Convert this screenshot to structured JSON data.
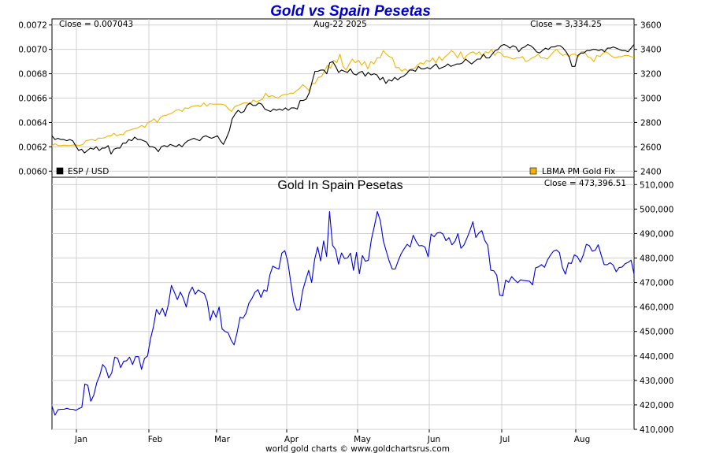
{
  "header": {
    "title": "Gold vs Spain Pesetas",
    "date": "Aug-22  2025",
    "close_left": "Close = 0.007043",
    "close_right": "Close = 3,334.25",
    "legend_left": "ESP / USD",
    "legend_right": "LBMA PM Gold Fix",
    "lower_title": "Gold In Spain Pesetas",
    "lower_close": "Close = 473,396.51",
    "footer": "world gold charts © www.goldchartsrus.com"
  },
  "colors": {
    "esp_usd": "#000000",
    "gold_fix": "#f0b400",
    "gold_in_esp": "#0000dd",
    "legend_left_box": "#000000",
    "legend_right_box": "#f0b400"
  },
  "chart_data": [
    {
      "type": "line",
      "title": "Gold vs Spain Pesetas",
      "x_labels": [
        "Jan",
        "Feb",
        "Mar",
        "Apr",
        "May",
        "Jun",
        "Jul",
        "Aug"
      ],
      "y_left_ticks": [
        "0.0060",
        "0.0062",
        "0.0064",
        "0.0066",
        "0.0068",
        "0.0070",
        "0.0072"
      ],
      "y_left_lim": [
        0.00595,
        0.00725
      ],
      "y_right_ticks": [
        "2400",
        "2600",
        "2800",
        "3000",
        "3200",
        "3400",
        "3600"
      ],
      "y_right_lim": [
        2350,
        3650
      ],
      "series": [
        {
          "name": "ESP / USD",
          "axis": "left",
          "values": [
            0.00629,
            0.00626,
            0.00627,
            0.00626,
            0.00626,
            0.00625,
            0.00626,
            0.00625,
            0.00621,
            0.00617,
            0.00618,
            0.00615,
            0.00617,
            0.00619,
            0.00618,
            0.0062,
            0.00617,
            0.00619,
            0.00619,
            0.00621,
            0.00614,
            0.00618,
            0.00619,
            0.00619,
            0.00623,
            0.00623,
            0.00626,
            0.00625,
            0.00628,
            0.00626,
            0.00626,
            0.00625,
            0.00624,
            0.0062,
            0.0062,
            0.00619,
            0.00616,
            0.0062,
            0.00621,
            0.0062,
            0.00622,
            0.00621,
            0.0062,
            0.00622,
            0.0062,
            0.00623,
            0.00625,
            0.00626,
            0.00627,
            0.00626,
            0.00625,
            0.00628,
            0.00629,
            0.00628,
            0.00627,
            0.00628,
            0.00629,
            0.00625,
            0.00622,
            0.00627,
            0.00633,
            0.00643,
            0.00647,
            0.0065,
            0.00648,
            0.00649,
            0.00654,
            0.00656,
            0.00654,
            0.00654,
            0.00656,
            0.00655,
            0.00651,
            0.0065,
            0.00649,
            0.00651,
            0.0065,
            0.00651,
            0.0065,
            0.00652,
            0.0065,
            0.00652,
            0.00652,
            0.00651,
            0.00658,
            0.00658,
            0.00659,
            0.00664,
            0.00673,
            0.00682,
            0.00682,
            0.00683,
            0.00683,
            0.0068,
            0.00689,
            0.0069,
            0.00686,
            0.00681,
            0.00683,
            0.00682,
            0.00681,
            0.00684,
            0.0068,
            0.00679,
            0.00681,
            0.00682,
            0.00678,
            0.00681,
            0.00679,
            0.0068,
            0.00679,
            0.00675,
            0.00677,
            0.00672,
            0.00675,
            0.00674,
            0.00677,
            0.00675,
            0.00677,
            0.00678,
            0.0068,
            0.00683,
            0.00683,
            0.00682,
            0.00686,
            0.00684,
            0.00684,
            0.00685,
            0.00684,
            0.00686,
            0.00688,
            0.00684,
            0.00685,
            0.00686,
            0.00688,
            0.00686,
            0.00687,
            0.00688,
            0.00688,
            0.00689,
            0.00692,
            0.0069,
            0.00688,
            0.0069,
            0.00692,
            0.00692,
            0.00696,
            0.00693,
            0.00693,
            0.00696,
            0.00699,
            0.007,
            0.00703,
            0.00704,
            0.00703,
            0.00701,
            0.00703,
            0.00702,
            0.00698,
            0.00701,
            0.00702,
            0.00704,
            0.00703,
            0.00701,
            0.00698,
            0.00697,
            0.00699,
            0.00701,
            0.007,
            0.00702,
            0.00702,
            0.00703,
            0.00703,
            0.00701,
            0.00698,
            0.00694,
            0.00686,
            0.00686,
            0.00695,
            0.00697,
            0.00697,
            0.00699,
            0.00699,
            0.007,
            0.007,
            0.00699,
            0.007,
            0.00698,
            0.00701,
            0.00701,
            0.00702,
            0.00701,
            0.007,
            0.00699,
            0.00699,
            0.00698,
            0.00701,
            0.00704
          ]
        },
        {
          "name": "LBMA PM Gold Fix",
          "axis": "right",
          "values": [
            2610,
            2625,
            2610,
            2610,
            2614,
            2610,
            2612,
            2616,
            2614,
            2612,
            2620,
            2650,
            2655,
            2660,
            2650,
            2672,
            2670,
            2675,
            2688,
            2690,
            2710,
            2690,
            2702,
            2700,
            2730,
            2735,
            2745,
            2750,
            2760,
            2775,
            2760,
            2800,
            2810,
            2830,
            2800,
            2840,
            2855,
            2860,
            2870,
            2880,
            2900,
            2905,
            2890,
            2920,
            2915,
            2930,
            2935,
            2940,
            2930,
            2960,
            2935,
            2955,
            2950,
            2950,
            2950,
            2950,
            2940,
            2910,
            2890,
            2930,
            2940,
            2950,
            2960,
            2960,
            2950,
            2985,
            2970,
            2980,
            2990,
            3040,
            3010,
            3020,
            3010,
            3000,
            3020,
            3030,
            3030,
            3040,
            3040,
            3060,
            3080,
            3110,
            3090,
            3060,
            3120,
            3120,
            3170,
            3175,
            3220,
            3270,
            3245,
            3310,
            3290,
            3360,
            3260,
            3230,
            3280,
            3320,
            3290,
            3310,
            3270,
            3300,
            3240,
            3300,
            3280,
            3330,
            3330,
            3390,
            3360,
            3340,
            3330,
            3250,
            3250,
            3220,
            3240,
            3220,
            3240,
            3240,
            3270,
            3290,
            3280,
            3310,
            3300,
            3330,
            3290,
            3340,
            3310,
            3340,
            3360,
            3390,
            3370,
            3330,
            3380,
            3320,
            3350,
            3370,
            3380,
            3360,
            3380,
            3340,
            3380,
            3370,
            3400,
            3350,
            3380,
            3370,
            3340,
            3340,
            3330,
            3320,
            3330,
            3330,
            3340,
            3300,
            3310,
            3330,
            3340,
            3360,
            3330,
            3330,
            3320,
            3350,
            3380,
            3400,
            3370,
            3350,
            3360,
            3340,
            3360,
            3360,
            3340,
            3380,
            3380,
            3340,
            3330,
            3300,
            3350,
            3340,
            3370,
            3380,
            3360,
            3340,
            3330,
            3340,
            3340,
            3350,
            3350,
            3340,
            3334
          ]
        }
      ]
    },
    {
      "type": "line",
      "title": "Gold In Spain Pesetas",
      "x_labels": [
        "Jan",
        "Feb",
        "Mar",
        "Apr",
        "May",
        "Jun",
        "Jul",
        "Aug"
      ],
      "y_right_ticks": [
        "410,000",
        "420,000",
        "430,000",
        "440,000",
        "450,000",
        "460,000",
        "470,000",
        "480,000",
        "490,000",
        "500,000",
        "510,000"
      ],
      "y_lim": [
        410000,
        513000
      ],
      "series": [
        {
          "name": "Gold In Spain Pesetas",
          "values": [
            419500,
            415800,
            418000,
            418200,
            418200,
            418600,
            418200,
            418200,
            417800,
            418500,
            419000,
            428500,
            428000,
            421500,
            424000,
            429000,
            432000,
            436500,
            435000,
            431000,
            433000,
            439500,
            439000,
            435200,
            437800,
            438000,
            439500,
            436500,
            439700,
            439700,
            434500,
            439000,
            440000,
            447000,
            452000,
            459000,
            457000,
            459500,
            456200,
            461000,
            468800,
            466000,
            463000,
            466100,
            463600,
            460000,
            465800,
            468100,
            465200,
            467000,
            466100,
            465500,
            462200,
            454500,
            458500,
            455800,
            460000,
            451000,
            450000,
            449500,
            446500,
            444500,
            449500,
            455800,
            455400,
            457400,
            461600,
            463500,
            466000,
            467100,
            463900,
            467000,
            466400,
            473200,
            476700,
            476000,
            475500,
            482000,
            483000,
            478500,
            470000,
            462000,
            458700,
            459000,
            466700,
            471000,
            475000,
            470000,
            479500,
            484500,
            478800,
            487000,
            480600,
            499000,
            485200,
            483500,
            477500,
            482100,
            479800,
            480000,
            482000,
            475000,
            482300,
            473600,
            481000,
            478700,
            479100,
            487600,
            493000,
            499000,
            495200,
            487000,
            482700,
            478700,
            475500,
            475500,
            478900,
            481800,
            483800,
            485600,
            484500,
            489300,
            486800,
            485000,
            485100,
            484400,
            480500,
            489800,
            488700,
            490200,
            490500,
            489800,
            487100,
            488300,
            485400,
            486800,
            490000,
            484000,
            485300,
            488100,
            491200,
            494800,
            488400,
            490200,
            491200,
            487200,
            485200,
            475000,
            474800,
            473000,
            464800,
            464600,
            471000,
            470100,
            472400,
            471100,
            469900,
            471100,
            470800,
            470700,
            470500,
            469000,
            476000,
            476400,
            477300,
            476200,
            479200,
            481200,
            482800,
            483300,
            482200,
            476200,
            473400,
            478000,
            477800,
            481300,
            480600,
            478300,
            481300,
            485600,
            485100,
            482800,
            483200,
            485400,
            481200,
            477300,
            477300,
            478100,
            477100,
            474400,
            476100,
            476300,
            477700,
            478200,
            479100,
            473400
          ]
        }
      ]
    }
  ]
}
